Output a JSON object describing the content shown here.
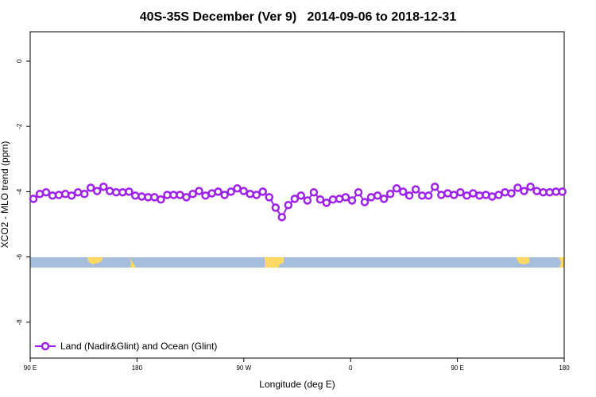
{
  "chart_data": {
    "type": "line",
    "title": "40S-35S December (Ver 9)   2014-09-06 to 2018-12-31",
    "x_label": "Longitude (deg E)",
    "y_label": "XCO2 - MLO trend (ppm)",
    "xlim": [
      90,
      540
    ],
    "ylim": [
      -9.1,
      0.9
    ],
    "xticks": [
      {
        "value": 90,
        "label": "90 E"
      },
      {
        "value": 180,
        "label": "180"
      },
      {
        "value": 270,
        "label": "90 W"
      },
      {
        "value": 360,
        "label": "0"
      },
      {
        "value": 450,
        "label": "90 E"
      },
      {
        "value": 540,
        "label": "180"
      }
    ],
    "yticks": [
      0,
      -2,
      -4,
      -6,
      -8
    ],
    "legend": "bottom-left",
    "series": [
      {
        "name": "Land (Nadir&Glint) and Ocean (Glint)",
        "color": "#a020f0",
        "x": [
          92.7,
          98.1,
          103.4,
          108.8,
          114.2,
          119.6,
          124.9,
          130.3,
          135.7,
          141.0,
          146.4,
          151.8,
          157.1,
          162.5,
          167.9,
          173.3,
          178.6,
          184.0,
          189.4,
          194.7,
          200.1,
          205.5,
          210.8,
          216.2,
          221.6,
          227.0,
          232.3,
          237.7,
          243.1,
          248.4,
          253.8,
          259.2,
          264.5,
          269.9,
          275.3,
          280.7,
          286.0,
          291.4,
          296.8,
          302.1,
          307.5,
          312.9,
          318.2,
          323.6,
          329.0,
          334.4,
          339.7,
          345.1,
          350.5,
          355.8,
          361.2,
          366.6,
          371.9,
          377.3,
          382.7,
          388.1,
          393.4,
          398.8,
          404.2,
          409.5,
          414.9,
          420.3,
          425.6,
          431.0,
          436.4,
          441.8,
          447.1,
          452.5,
          457.9,
          463.2,
          468.6,
          474.0,
          479.3,
          484.7,
          490.1,
          495.5,
          500.8,
          506.2,
          511.6,
          516.9,
          522.3,
          527.7,
          533.0,
          538.4
        ],
        "values": [
          -4.22,
          -4.07,
          -4.02,
          -4.12,
          -4.1,
          -4.07,
          -4.12,
          -4.02,
          -4.07,
          -3.88,
          -3.98,
          -3.85,
          -3.98,
          -4.02,
          -4.02,
          -4.0,
          -4.12,
          -4.15,
          -4.17,
          -4.17,
          -4.24,
          -4.1,
          -4.1,
          -4.1,
          -4.17,
          -4.07,
          -3.98,
          -4.12,
          -4.05,
          -4.0,
          -4.1,
          -4.0,
          -3.9,
          -3.98,
          -4.07,
          -4.1,
          -4.0,
          -4.17,
          -4.49,
          -4.78,
          -4.41,
          -4.22,
          -4.12,
          -4.27,
          -4.02,
          -4.24,
          -4.34,
          -4.24,
          -4.22,
          -4.17,
          -4.27,
          -4.02,
          -4.32,
          -4.17,
          -4.12,
          -4.22,
          -4.07,
          -3.9,
          -4.0,
          -4.12,
          -3.93,
          -4.12,
          -4.12,
          -3.85,
          -4.1,
          -4.05,
          -4.1,
          -4.02,
          -4.12,
          -4.05,
          -4.12,
          -4.1,
          -4.15,
          -4.1,
          -4.02,
          -4.05,
          -3.88,
          -3.98,
          -3.85,
          -3.98,
          -4.02,
          -4.02,
          -4.0,
          -4.0
        ]
      }
    ]
  }
}
